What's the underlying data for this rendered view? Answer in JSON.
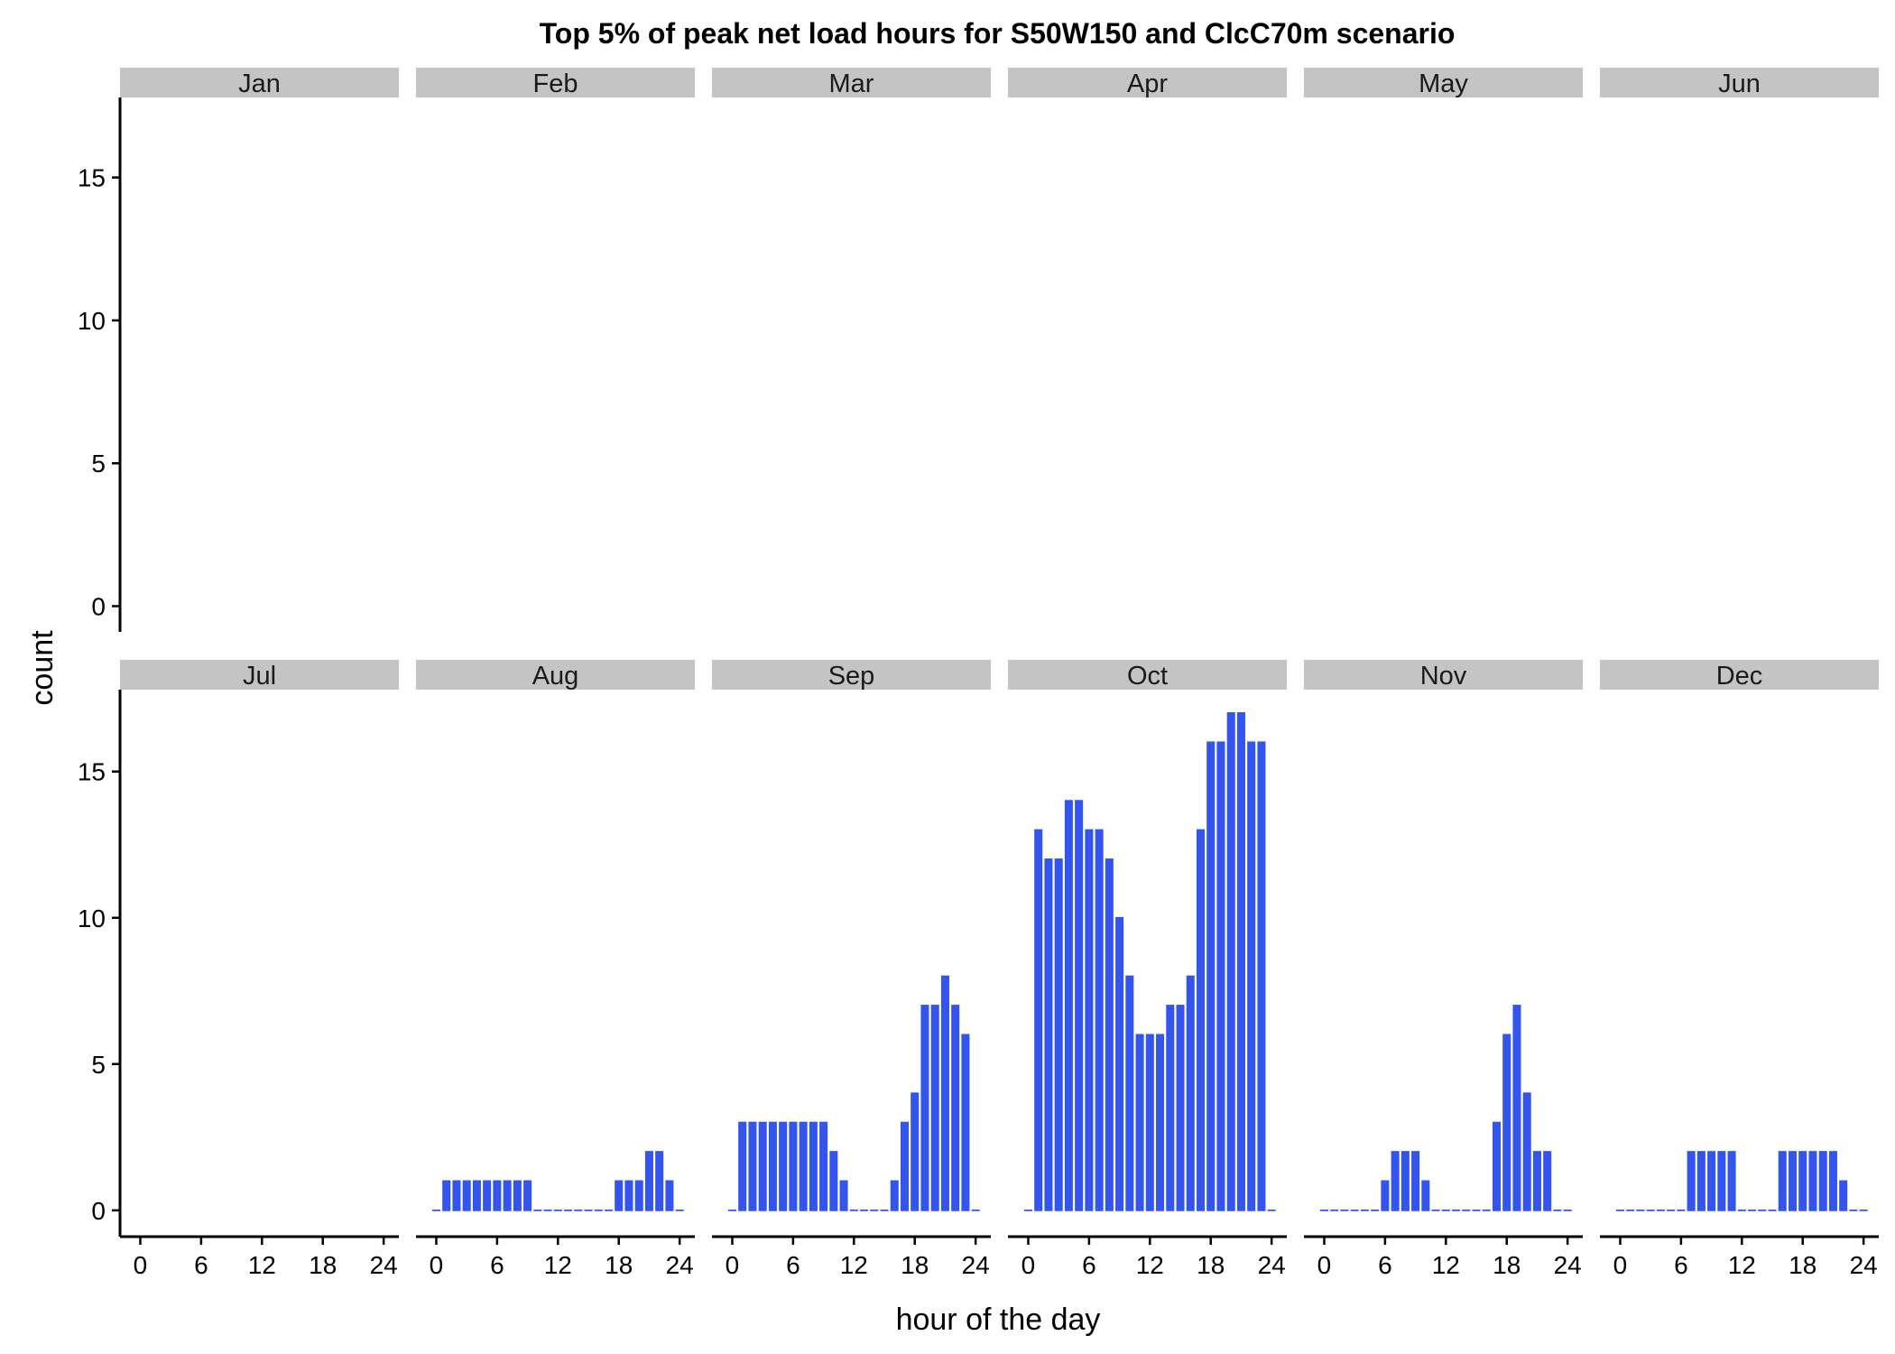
{
  "chart_data": {
    "type": "bar",
    "title": "Top 5% of peak net load hours for S50W150 and ClcC70m scenario",
    "xlabel": "hour of the day",
    "ylabel": "count",
    "x_ticks": [
      0,
      6,
      12,
      18,
      24
    ],
    "y_ticks": [
      0,
      5,
      10,
      15
    ],
    "xlim": [
      -2,
      25.5
    ],
    "ylim": [
      -0.9,
      17.8
    ],
    "grid": false,
    "bar_color": "#3355ee",
    "facets": [
      {
        "month": "Jan",
        "values": []
      },
      {
        "month": "Feb",
        "values": []
      },
      {
        "month": "Mar",
        "values": []
      },
      {
        "month": "Apr",
        "values": []
      },
      {
        "month": "May",
        "values": []
      },
      {
        "month": "Jun",
        "values": []
      },
      {
        "month": "Jul",
        "values": []
      },
      {
        "month": "Aug",
        "values": [
          0,
          1,
          1,
          1,
          1,
          1,
          1,
          1,
          1,
          1,
          0,
          0,
          0,
          0,
          0,
          0,
          0,
          0,
          1,
          1,
          1,
          2,
          2,
          1,
          0
        ]
      },
      {
        "month": "Sep",
        "values": [
          0,
          3,
          3,
          3,
          3,
          3,
          3,
          3,
          3,
          3,
          2,
          1,
          0,
          0,
          0,
          0,
          1,
          3,
          4,
          7,
          7,
          8,
          7,
          6,
          0
        ]
      },
      {
        "month": "Oct",
        "values": [
          0,
          13,
          12,
          12,
          14,
          14,
          13,
          13,
          12,
          10,
          8,
          6,
          6,
          6,
          7,
          7,
          8,
          13,
          16,
          16,
          17,
          17,
          16,
          16,
          0
        ]
      },
      {
        "month": "Nov",
        "values": [
          0,
          0,
          0,
          0,
          0,
          0,
          1,
          2,
          2,
          2,
          1,
          0,
          0,
          0,
          0,
          0,
          0,
          3,
          6,
          7,
          4,
          2,
          2,
          0,
          0
        ]
      },
      {
        "month": "Dec",
        "values": [
          0,
          0,
          0,
          0,
          0,
          0,
          0,
          2,
          2,
          2,
          2,
          2,
          0,
          0,
          0,
          0,
          2,
          2,
          2,
          2,
          2,
          2,
          1,
          0,
          0
        ]
      }
    ]
  }
}
